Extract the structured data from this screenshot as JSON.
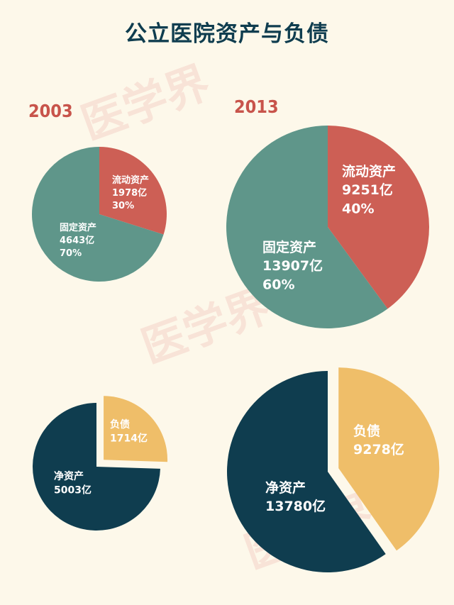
{
  "title": "公立医院资产与负债",
  "watermark": "医学界",
  "colors": {
    "current_assets": "#cd5f55",
    "fixed_assets": "#5f968a",
    "liabilities": "#efbe69",
    "net_assets": "#0f3d4f",
    "title": "#0f3d4f",
    "year": "#c8544b",
    "background": "#fdf8ea"
  },
  "chart_data": [
    {
      "type": "pie",
      "title": "2003",
      "slices": [
        {
          "label": "流动资产",
          "value": 1978,
          "value_text": "1978亿",
          "percent_text": "30%",
          "percent": 30
        },
        {
          "label": "固定资产",
          "value": 4643,
          "value_text": "4643亿",
          "percent_text": "70%",
          "percent": 70
        }
      ]
    },
    {
      "type": "pie",
      "title": "2013",
      "slices": [
        {
          "label": "流动资产",
          "value": 9251,
          "value_text": "9251亿",
          "percent_text": "40%",
          "percent": 40
        },
        {
          "label": "固定资产",
          "value": 13907,
          "value_text": "13907亿",
          "percent_text": "60%",
          "percent": 60
        }
      ]
    },
    {
      "type": "pie",
      "title": "",
      "exploded": "负债",
      "slices": [
        {
          "label": "负债",
          "value": 1714,
          "value_text": "1714亿"
        },
        {
          "label": "净资产",
          "value": 5003,
          "value_text": "5003亿"
        }
      ]
    },
    {
      "type": "pie",
      "title": "",
      "exploded": "负债",
      "slices": [
        {
          "label": "负债",
          "value": 9278,
          "value_text": "9278亿"
        },
        {
          "label": "净资产",
          "value": 13780,
          "value_text": "13780亿"
        }
      ]
    }
  ]
}
